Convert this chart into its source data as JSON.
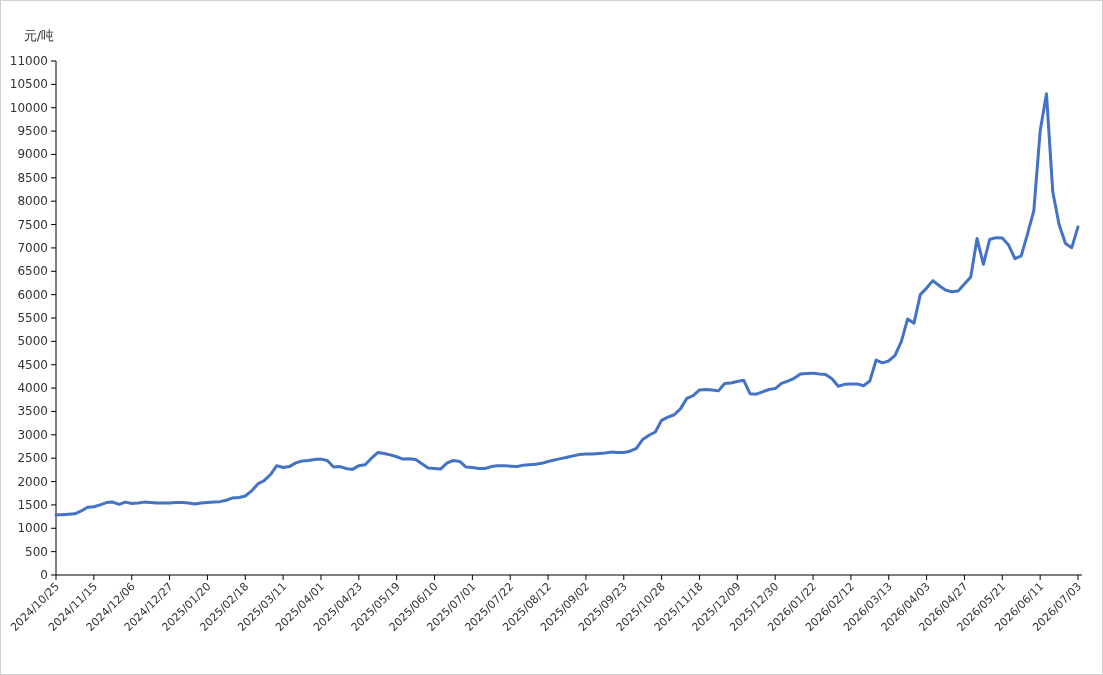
{
  "chart_data": {
    "type": "line",
    "ylabel": "元/吨",
    "categories": [
      "2024/10/25",
      null,
      null,
      null,
      null,
      null,
      "2024/11/15",
      null,
      null,
      null,
      null,
      null,
      "2024/12/06",
      null,
      null,
      null,
      null,
      null,
      "2024/12/27",
      null,
      null,
      null,
      null,
      null,
      "2025/01/20",
      null,
      null,
      null,
      null,
      null,
      "2025/02/18",
      null,
      null,
      null,
      null,
      null,
      "2025/03/11",
      null,
      null,
      null,
      null,
      null,
      "2025/04/01",
      null,
      null,
      null,
      null,
      null,
      "2025/04/23",
      null,
      null,
      null,
      null,
      null,
      "2025/05/19",
      null,
      null,
      null,
      null,
      null,
      "2025/06/10",
      null,
      null,
      null,
      null,
      null,
      "2025/07/01",
      null,
      null,
      null,
      null,
      null,
      "2025/07/22",
      null,
      null,
      null,
      null,
      null,
      "2025/08/12",
      null,
      null,
      null,
      null,
      null,
      "2025/09/02",
      null,
      null,
      null,
      null,
      null,
      "2025/09/23",
      null,
      null,
      null,
      null,
      null,
      "2025/10/28",
      null,
      null,
      null,
      null,
      null,
      "2025/11/18",
      null,
      null,
      null,
      null,
      null,
      "2025/12/09",
      null,
      null,
      null,
      null,
      null,
      "2025/12/30",
      null,
      null,
      null,
      null,
      null,
      "2026/01/22",
      null,
      null,
      null,
      null,
      null,
      "2026/02/12",
      null,
      null,
      null,
      null,
      null,
      "2026/03/13",
      null,
      null,
      null,
      null,
      null,
      "2026/04/03",
      null,
      null,
      null,
      null,
      null,
      "2026/04/27",
      null,
      null,
      null,
      null,
      null,
      "2026/05/21",
      null,
      null,
      null,
      null,
      null,
      "2026/06/11",
      null,
      null,
      null,
      null,
      null,
      "2026/07/03"
    ],
    "series": [
      {
        "color": "#4472c4",
        "values": [
          1290,
          1290,
          1300,
          1310,
          1370,
          1450,
          1460,
          1500,
          1550,
          1560,
          1510,
          1560,
          1530,
          1540,
          1560,
          1550,
          1540,
          1540,
          1540,
          1550,
          1550,
          1540,
          1520,
          1540,
          1550,
          1560,
          1570,
          1600,
          1650,
          1660,
          1690,
          1800,
          1950,
          2020,
          2150,
          2340,
          2300,
          2320,
          2400,
          2440,
          2450,
          2470,
          2480,
          2450,
          2310,
          2320,
          2280,
          2260,
          2340,
          2360,
          2500,
          2620,
          2600,
          2570,
          2530,
          2480,
          2490,
          2470,
          2380,
          2290,
          2280,
          2270,
          2400,
          2450,
          2430,
          2310,
          2300,
          2280,
          2280,
          2320,
          2340,
          2340,
          2330,
          2320,
          2350,
          2360,
          2370,
          2390,
          2430,
          2460,
          2490,
          2520,
          2550,
          2580,
          2590,
          2590,
          2600,
          2610,
          2630,
          2620,
          2620,
          2650,
          2710,
          2900,
          2990,
          3060,
          3310,
          3380,
          3430,
          3560,
          3780,
          3840,
          3960,
          3970,
          3960,
          3940,
          4100,
          4110,
          4140,
          4170,
          3880,
          3870,
          3920,
          3970,
          3990,
          4100,
          4150,
          4210,
          4300,
          4310,
          4320,
          4300,
          4290,
          4200,
          4040,
          4080,
          4090,
          4090,
          4050,
          4150,
          4600,
          4540,
          4580,
          4700,
          5000,
          5480,
          5390,
          6000,
          6140,
          6300,
          6190,
          6100,
          6060,
          6080,
          6230,
          6380,
          7200,
          6650,
          7180,
          7220,
          7210,
          7060,
          6770,
          6830,
          7300,
          7800,
          9500,
          10300,
          8200,
          7500,
          7100,
          7000,
          7450
        ]
      }
    ],
    "ylim": [
      0,
      11000
    ],
    "yticks": [
      0,
      500,
      1000,
      1500,
      2000,
      2500,
      3000,
      3500,
      4000,
      4500,
      5000,
      5500,
      6000,
      6500,
      7000,
      7500,
      8000,
      8500,
      9000,
      9500,
      10000,
      10500,
      11000
    ]
  }
}
